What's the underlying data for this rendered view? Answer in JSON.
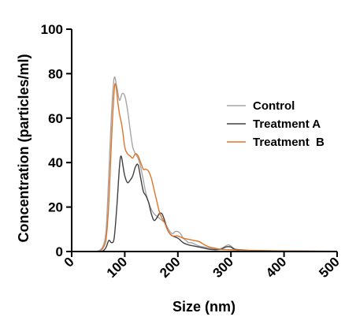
{
  "chart_data": {
    "type": "line",
    "title": "",
    "xlabel": "Size (nm)",
    "ylabel": "Concentration (particles/ml)",
    "xlim": [
      0,
      500
    ],
    "ylim": [
      0,
      100
    ],
    "x_ticks": [
      "0",
      "100",
      "200",
      "300",
      "400",
      "500"
    ],
    "y_ticks": [
      "0",
      "20",
      "40",
      "60",
      "80",
      "100"
    ],
    "grid": false,
    "legend_position": "right",
    "series": [
      {
        "name": "Control",
        "color": "#a6a6a6",
        "points": [
          [
            0,
            0
          ],
          [
            40,
            0
          ],
          [
            50,
            0.3
          ],
          [
            55,
            1
          ],
          [
            60,
            3
          ],
          [
            65,
            10
          ],
          [
            70,
            35
          ],
          [
            75,
            62
          ],
          [
            80,
            78
          ],
          [
            85,
            74
          ],
          [
            90,
            68
          ],
          [
            95,
            71
          ],
          [
            100,
            70
          ],
          [
            105,
            64
          ],
          [
            110,
            55
          ],
          [
            115,
            47
          ],
          [
            120,
            44
          ],
          [
            125,
            42
          ],
          [
            130,
            38
          ],
          [
            135,
            32
          ],
          [
            140,
            26
          ],
          [
            145,
            22
          ],
          [
            150,
            19
          ],
          [
            155,
            17
          ],
          [
            160,
            16
          ],
          [
            165,
            15
          ],
          [
            170,
            14
          ],
          [
            175,
            13
          ],
          [
            180,
            11
          ],
          [
            185,
            9
          ],
          [
            190,
            8
          ],
          [
            195,
            9
          ],
          [
            200,
            9
          ],
          [
            205,
            8
          ],
          [
            210,
            6
          ],
          [
            215,
            5
          ],
          [
            220,
            4
          ],
          [
            225,
            4
          ],
          [
            230,
            3.5
          ],
          [
            240,
            2.5
          ],
          [
            250,
            2
          ],
          [
            260,
            1.5
          ],
          [
            270,
            1.2
          ],
          [
            280,
            1.2
          ],
          [
            290,
            2.5
          ],
          [
            295,
            3
          ],
          [
            300,
            2.5
          ],
          [
            305,
            1.5
          ],
          [
            310,
            1
          ],
          [
            330,
            0.6
          ],
          [
            350,
            0.5
          ],
          [
            380,
            0.3
          ],
          [
            420,
            0.2
          ],
          [
            460,
            0.2
          ],
          [
            500,
            0.1
          ]
        ]
      },
      {
        "name": "Treatment A",
        "color": "#404040",
        "points": [
          [
            0,
            0
          ],
          [
            50,
            0
          ],
          [
            60,
            0.5
          ],
          [
            65,
            2
          ],
          [
            70,
            5
          ],
          [
            75,
            4
          ],
          [
            80,
            6
          ],
          [
            85,
            20
          ],
          [
            90,
            38
          ],
          [
            93,
            43
          ],
          [
            97,
            38
          ],
          [
            100,
            34
          ],
          [
            105,
            31
          ],
          [
            110,
            32
          ],
          [
            115,
            34
          ],
          [
            120,
            38
          ],
          [
            125,
            39
          ],
          [
            130,
            33
          ],
          [
            135,
            27
          ],
          [
            140,
            25
          ],
          [
            145,
            22
          ],
          [
            150,
            17
          ],
          [
            155,
            14
          ],
          [
            160,
            15
          ],
          [
            165,
            17
          ],
          [
            170,
            17
          ],
          [
            175,
            14
          ],
          [
            180,
            10
          ],
          [
            185,
            8
          ],
          [
            190,
            7
          ],
          [
            200,
            6
          ],
          [
            210,
            4
          ],
          [
            220,
            3
          ],
          [
            230,
            2.5
          ],
          [
            240,
            2
          ],
          [
            250,
            1.5
          ],
          [
            260,
            1
          ],
          [
            270,
            0.8
          ],
          [
            280,
            1
          ],
          [
            290,
            2
          ],
          [
            295,
            2.2
          ],
          [
            300,
            2
          ],
          [
            305,
            1.2
          ],
          [
            310,
            0.8
          ],
          [
            330,
            0.5
          ],
          [
            350,
            0.4
          ],
          [
            400,
            0.2
          ],
          [
            460,
            0.1
          ],
          [
            500,
            0
          ]
        ]
      },
      {
        "name": "Treatment  B",
        "color": "#e07428",
        "points": [
          [
            0,
            0
          ],
          [
            50,
            0
          ],
          [
            55,
            0.5
          ],
          [
            60,
            2
          ],
          [
            65,
            6
          ],
          [
            70,
            22
          ],
          [
            75,
            50
          ],
          [
            80,
            72
          ],
          [
            83,
            75
          ],
          [
            87,
            67
          ],
          [
            90,
            62
          ],
          [
            95,
            56
          ],
          [
            100,
            47
          ],
          [
            105,
            44
          ],
          [
            110,
            43
          ],
          [
            115,
            42
          ],
          [
            120,
            44
          ],
          [
            125,
            43
          ],
          [
            130,
            40
          ],
          [
            135,
            37
          ],
          [
            140,
            37
          ],
          [
            145,
            36
          ],
          [
            150,
            33
          ],
          [
            155,
            28
          ],
          [
            160,
            23
          ],
          [
            165,
            18
          ],
          [
            170,
            15
          ],
          [
            175,
            13
          ],
          [
            180,
            10
          ],
          [
            185,
            8
          ],
          [
            190,
            7
          ],
          [
            200,
            7
          ],
          [
            210,
            6
          ],
          [
            220,
            5.5
          ],
          [
            230,
            5
          ],
          [
            240,
            4.5
          ],
          [
            250,
            3
          ],
          [
            260,
            2
          ],
          [
            270,
            1.5
          ],
          [
            280,
            1
          ],
          [
            300,
            0.8
          ],
          [
            320,
            0.5
          ],
          [
            350,
            0.4
          ],
          [
            400,
            0.3
          ],
          [
            450,
            0.2
          ],
          [
            500,
            0.1
          ]
        ]
      }
    ]
  }
}
